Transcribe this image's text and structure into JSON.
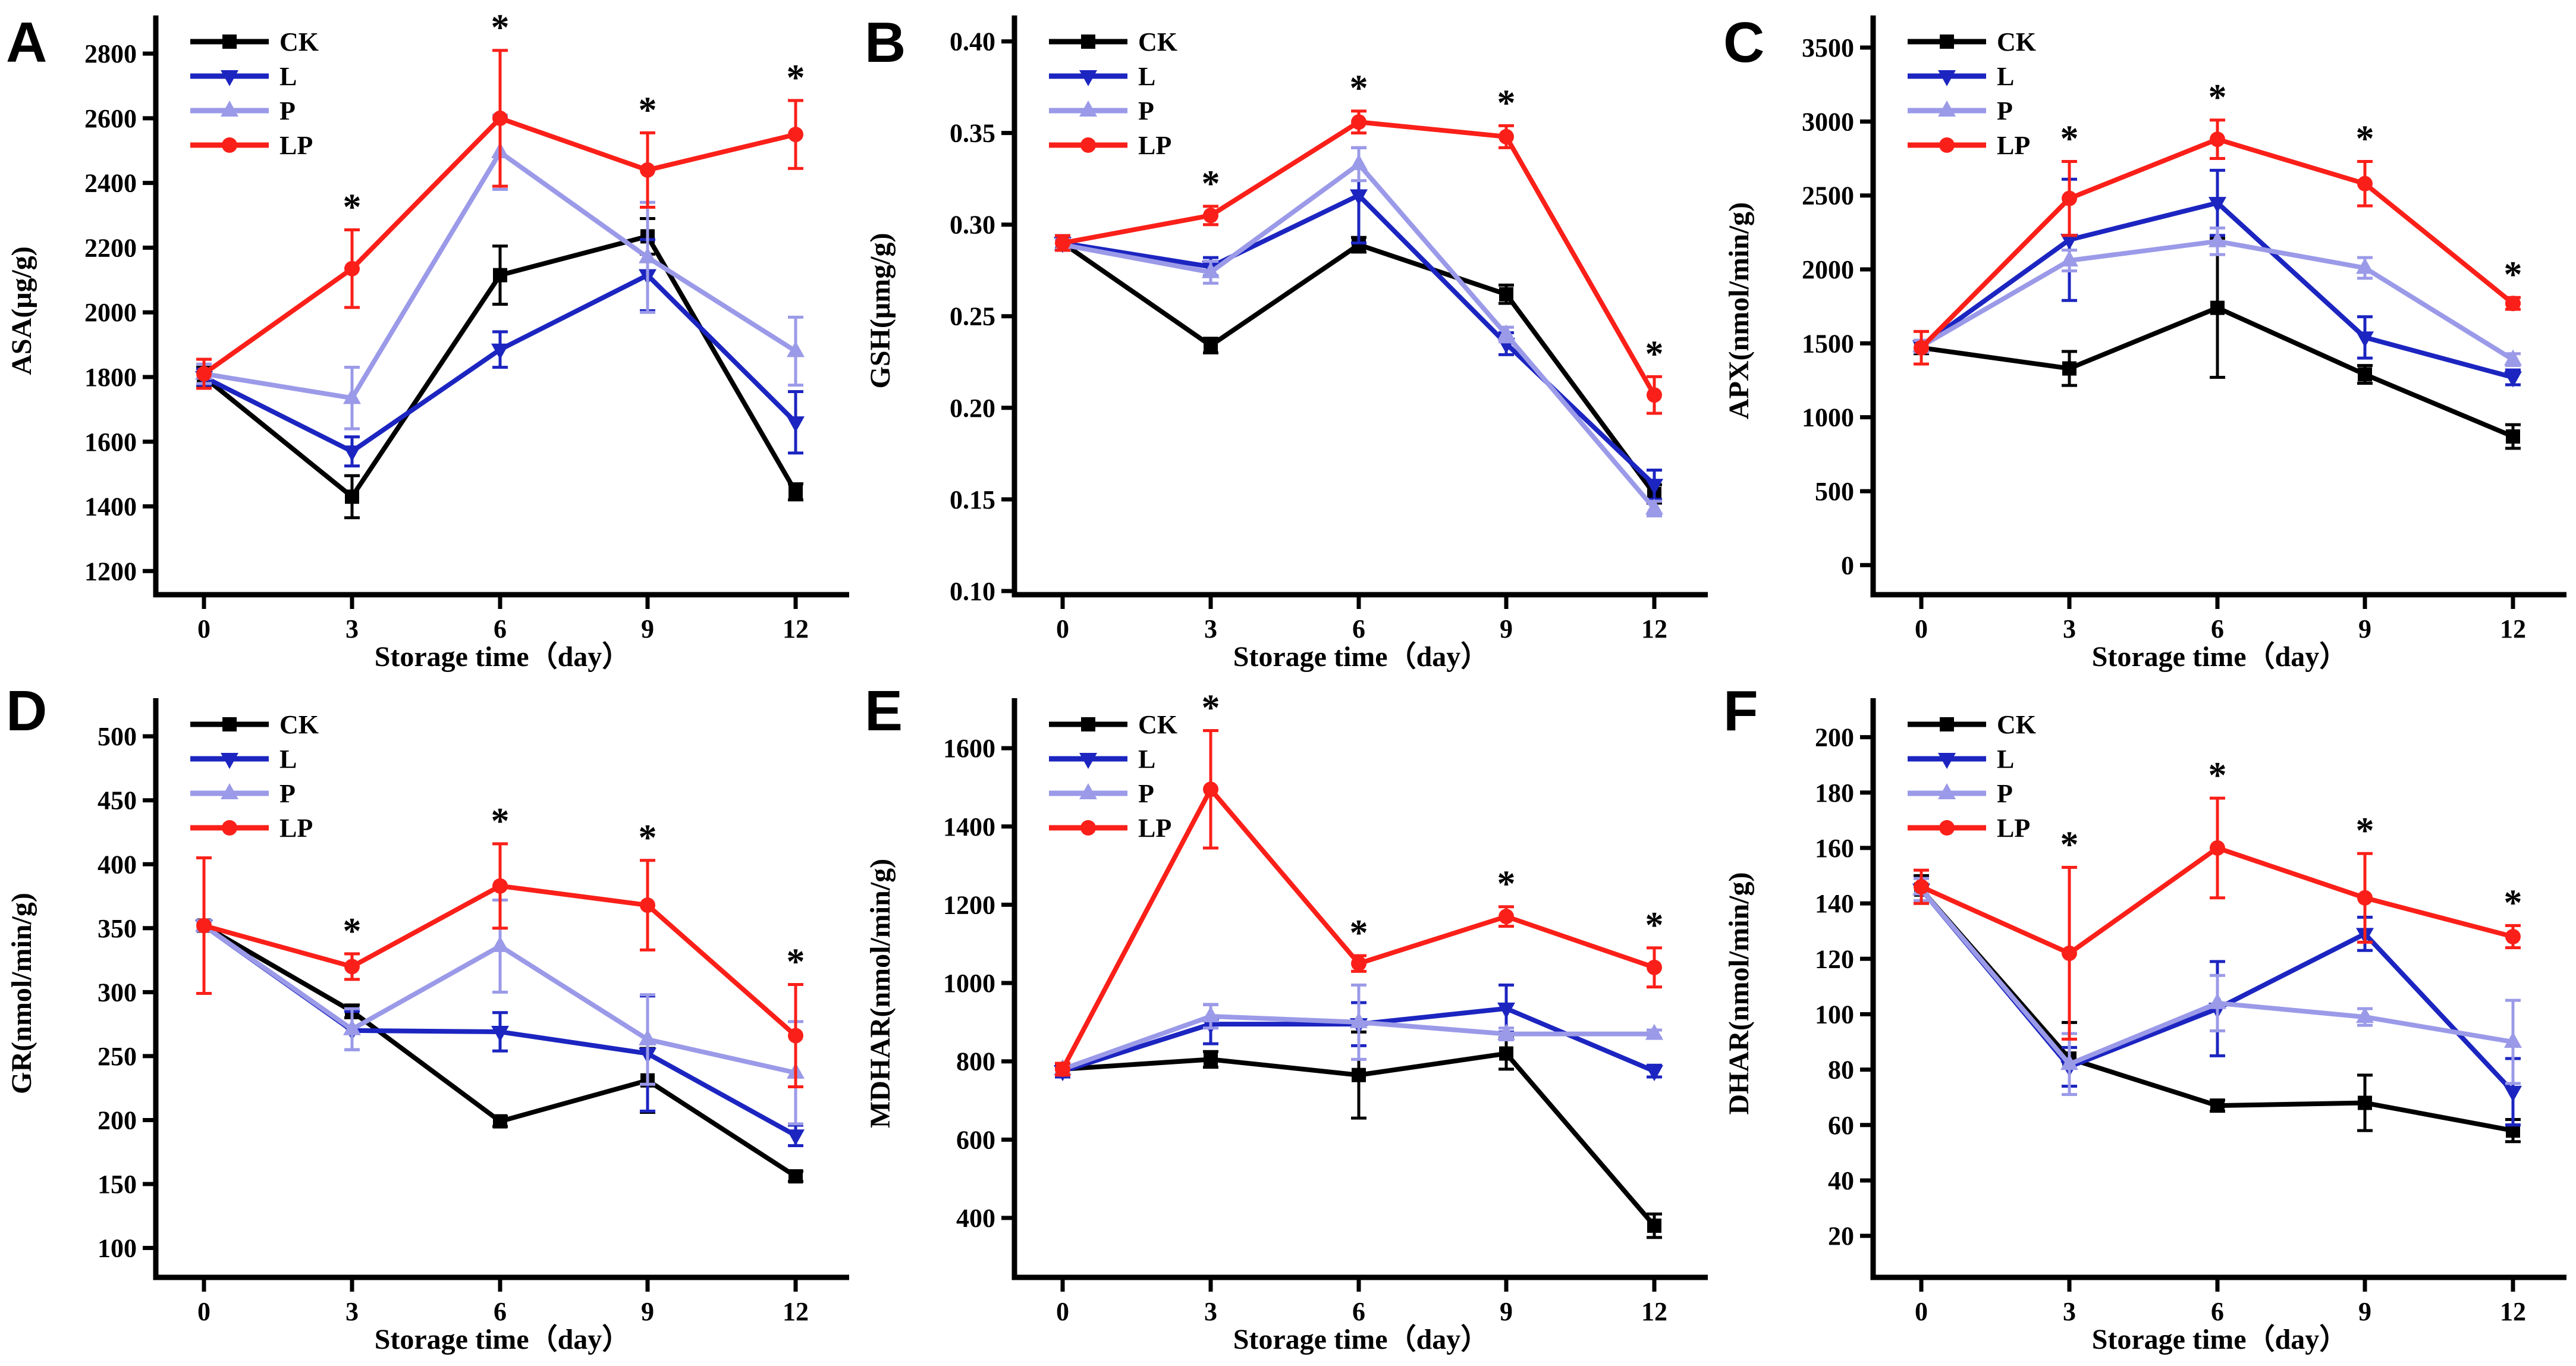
{
  "figure": {
    "xlabel": "Storage time（day）",
    "significance_symbol": "*",
    "legend_labels": [
      "CK",
      "L",
      "P",
      "LP"
    ]
  },
  "colors": {
    "CK": "#000000",
    "L": "#1c25c0",
    "P": "#9b9ae8",
    "LP": "#fa2019",
    "significance": "#ee2222",
    "axis": "#000000",
    "background": "#ffffff"
  },
  "chart_data": [
    {
      "panel": "A",
      "type": "line",
      "ylabel": "ASA(μg/g)",
      "xlabel": "Storage time（day）",
      "x": [
        0,
        3,
        6,
        9,
        12
      ],
      "yticks": [
        1200,
        1400,
        1600,
        1800,
        2000,
        2200,
        2400,
        2600,
        2800
      ],
      "ylim": [
        1127,
        2883
      ],
      "tick_decimals": 0,
      "legend_position": "top-left",
      "grid": false,
      "series": [
        {
          "name": "CK",
          "marker": "square",
          "values": [
            1800,
            1430,
            2115,
            2235,
            1445
          ],
          "errors": [
            30,
            65,
            90,
            55,
            25
          ]
        },
        {
          "name": "L",
          "marker": "triangle-down",
          "values": [
            1800,
            1570,
            1885,
            2115,
            1660
          ],
          "errors": [
            25,
            45,
            55,
            110,
            95
          ]
        },
        {
          "name": "P",
          "marker": "triangle-up",
          "values": [
            1810,
            1735,
            2495,
            2170,
            1880
          ],
          "errors": [
            30,
            95,
            115,
            170,
            105
          ]
        },
        {
          "name": "LP",
          "marker": "circle",
          "values": [
            1810,
            2135,
            2600,
            2440,
            2550
          ],
          "errors": [
            45,
            120,
            210,
            115,
            105
          ]
        }
      ],
      "significance_days": [
        3,
        6,
        9,
        12
      ]
    },
    {
      "panel": "B",
      "type": "line",
      "ylabel": "GSH(μmg/g)",
      "xlabel": "Storage time（day）",
      "x": [
        0,
        3,
        6,
        9,
        12
      ],
      "yticks": [
        0.1,
        0.15,
        0.2,
        0.25,
        0.3,
        0.35,
        0.4
      ],
      "ylim": [
        0.098,
        0.408
      ],
      "tick_decimals": 2,
      "legend_position": "top-left",
      "grid": false,
      "series": [
        {
          "name": "CK",
          "marker": "square",
          "values": [
            0.29,
            0.234,
            0.289,
            0.262,
            0.153
          ],
          "errors": [
            0.004,
            0.004,
            0.004,
            0.005,
            0.005
          ]
        },
        {
          "name": "L",
          "marker": "triangle-down",
          "values": [
            0.29,
            0.277,
            0.316,
            0.235,
            0.158
          ],
          "errors": [
            0.003,
            0.005,
            0.026,
            0.006,
            0.008
          ]
        },
        {
          "name": "P",
          "marker": "triangle-up",
          "values": [
            0.289,
            0.274,
            0.333,
            0.24,
            0.145
          ],
          "errors": [
            0.003,
            0.006,
            0.009,
            0.004,
            0.004
          ]
        },
        {
          "name": "LP",
          "marker": "circle",
          "values": [
            0.29,
            0.305,
            0.356,
            0.348,
            0.207
          ],
          "errors": [
            0.004,
            0.005,
            0.006,
            0.006,
            0.01
          ]
        }
      ],
      "significance_days": [
        3,
        6,
        9,
        12
      ]
    },
    {
      "panel": "C",
      "type": "line",
      "ylabel": "APX(nmol/min/g)",
      "xlabel": "Storage time（day）",
      "x": [
        0,
        3,
        6,
        9,
        12
      ],
      "yticks": [
        0,
        500,
        1000,
        1500,
        2000,
        2500,
        3000,
        3500
      ],
      "ylim": [
        -200,
        3641
      ],
      "tick_decimals": 0,
      "legend_position": "top-left",
      "grid": false,
      "series": [
        {
          "name": "CK",
          "marker": "square",
          "values": [
            1470,
            1330,
            1740,
            1290,
            870
          ],
          "errors": [
            40,
            115,
            470,
            60,
            80
          ]
        },
        {
          "name": "L",
          "marker": "triangle-down",
          "values": [
            1480,
            2200,
            2450,
            1540,
            1270
          ],
          "errors": [
            40,
            410,
            220,
            140,
            50
          ]
        },
        {
          "name": "P",
          "marker": "triangle-up",
          "values": [
            1480,
            2060,
            2190,
            2010,
            1390
          ],
          "errors": [
            40,
            70,
            90,
            70,
            40
          ]
        },
        {
          "name": "LP",
          "marker": "circle",
          "values": [
            1470,
            2480,
            2880,
            2580,
            1770
          ],
          "errors": [
            110,
            250,
            130,
            150,
            40
          ]
        }
      ],
      "significance_days": [
        3,
        6,
        9,
        12
      ]
    },
    {
      "panel": "D",
      "type": "line",
      "ylabel": "GR(nmol/min/g)",
      "xlabel": "Storage time（day）",
      "x": [
        0,
        3,
        6,
        9,
        12
      ],
      "yticks": [
        100,
        150,
        200,
        250,
        300,
        350,
        400,
        450,
        500
      ],
      "ylim": [
        77,
        521
      ],
      "tick_decimals": 0,
      "legend_position": "top-left",
      "grid": false,
      "series": [
        {
          "name": "CK",
          "marker": "square",
          "values": [
            352,
            285,
            199,
            231,
            156
          ],
          "errors": [
            4,
            5,
            4,
            25,
            4
          ]
        },
        {
          "name": "L",
          "marker": "triangle-down",
          "values": [
            352,
            270,
            269,
            252,
            188
          ],
          "errors": [
            4,
            15,
            15,
            45,
            8
          ]
        },
        {
          "name": "P",
          "marker": "triangle-up",
          "values": [
            352,
            271,
            336,
            263,
            237
          ],
          "errors": [
            4,
            16,
            36,
            35,
            40
          ]
        },
        {
          "name": "LP",
          "marker": "circle",
          "values": [
            352,
            320,
            383,
            368,
            266
          ],
          "errors": [
            53,
            10,
            33,
            35,
            40
          ]
        }
      ],
      "significance_days": [
        3,
        6,
        9,
        12
      ]
    },
    {
      "panel": "E",
      "type": "line",
      "ylabel": "MDHAR(nmol/min/g)",
      "xlabel": "Storage time（day）",
      "x": [
        0,
        3,
        6,
        9,
        12
      ],
      "yticks": [
        400,
        600,
        800,
        1000,
        1200,
        1400,
        1600
      ],
      "ylim": [
        248,
        1699
      ],
      "tick_decimals": 0,
      "legend_position": "top-left",
      "grid": false,
      "series": [
        {
          "name": "CK",
          "marker": "square",
          "values": [
            780,
            805,
            765,
            820,
            380
          ],
          "errors": [
            15,
            20,
            110,
            40,
            30
          ]
        },
        {
          "name": "L",
          "marker": "triangle-down",
          "values": [
            775,
            895,
            895,
            935,
            775
          ],
          "errors": [
            15,
            50,
            55,
            60,
            15
          ]
        },
        {
          "name": "P",
          "marker": "triangle-up",
          "values": [
            780,
            915,
            900,
            870,
            870
          ],
          "errors": [
            15,
            30,
            95,
            15,
            10
          ]
        },
        {
          "name": "LP",
          "marker": "circle",
          "values": [
            780,
            1495,
            1050,
            1170,
            1040
          ],
          "errors": [
            15,
            150,
            20,
            25,
            50
          ]
        }
      ],
      "significance_days": [
        3,
        6,
        9,
        12
      ]
    },
    {
      "panel": "F",
      "type": "line",
      "ylabel": "DHAR(nmol/min/g)",
      "xlabel": "Storage time（day）",
      "x": [
        0,
        3,
        6,
        9,
        12
      ],
      "yticks": [
        20,
        40,
        60,
        80,
        100,
        120,
        140,
        160,
        180,
        200
      ],
      "ylim": [
        5,
        210
      ],
      "tick_decimals": 0,
      "legend_position": "top-left",
      "grid": false,
      "series": [
        {
          "name": "CK",
          "marker": "square",
          "values": [
            145,
            84,
            67,
            68,
            58
          ],
          "errors": [
            5,
            13,
            2,
            10,
            4
          ]
        },
        {
          "name": "L",
          "marker": "triangle-down",
          "values": [
            145,
            81,
            102,
            129,
            72
          ],
          "errors": [
            4,
            7,
            17,
            6,
            12
          ]
        },
        {
          "name": "P",
          "marker": "triangle-up",
          "values": [
            145,
            82,
            104,
            99,
            90
          ],
          "errors": [
            4,
            11,
            10,
            3,
            15
          ]
        },
        {
          "name": "LP",
          "marker": "circle",
          "values": [
            146,
            122,
            160,
            142,
            128
          ],
          "errors": [
            6,
            31,
            18,
            16,
            4
          ]
        }
      ],
      "significance_days": [
        3,
        6,
        9,
        12
      ]
    }
  ]
}
